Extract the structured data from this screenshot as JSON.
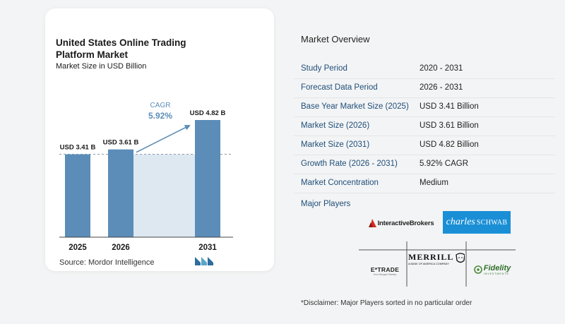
{
  "chart_card": {
    "title": "United States Online Trading Platform Market",
    "subtitle": "Market Size in USD Billion",
    "source": "Source: Mordor Intelligence"
  },
  "chart_data": {
    "type": "bar",
    "categories": [
      "2025",
      "2026",
      "2031"
    ],
    "values": [
      3.41,
      3.61,
      4.82
    ],
    "value_labels": [
      "USD 3.41 B",
      "USD 3.61 B",
      "USD 4.82 B"
    ],
    "ylim": [
      0,
      4.82
    ],
    "cagr_label": "CAGR",
    "cagr_value": "5.92%",
    "colors": {
      "bar": "#5b8db8",
      "shade": "#dde8f1"
    }
  },
  "overview": {
    "title": "Market Overview",
    "rows": [
      {
        "label": "Study Period",
        "value": "2020 - 2031"
      },
      {
        "label": "Forecast Data Period",
        "value": "2026 - 2031"
      },
      {
        "label": "Base Year Market Size (2025)",
        "value": "USD 3.41 Billion"
      },
      {
        "label": "Market Size (2026)",
        "value": "USD 3.61 Billion"
      },
      {
        "label": "Market Size (2031)",
        "value": "USD 4.82 Billion"
      },
      {
        "label": "Growth Rate (2026 - 2031)",
        "value": "5.92% CAGR"
      },
      {
        "label": "Market Concentration",
        "value": "Medium"
      }
    ]
  },
  "players": {
    "title": "Major Players",
    "logos": {
      "interactive": "InteractiveBrokers",
      "schwab_a": "charles",
      "schwab_b": "SCHWAB",
      "etrade": "E*TRADE",
      "etrade_sub": "from Morgan Stanley",
      "merrill": "MERRILL",
      "merrill_sub": "A BANK OF AMERICA COMPANY",
      "fidelity": "Fidelity",
      "fidelity_sub": "INVESTMENTS"
    }
  },
  "disclaimer": "*Disclaimer: Major Players sorted in no particular order"
}
